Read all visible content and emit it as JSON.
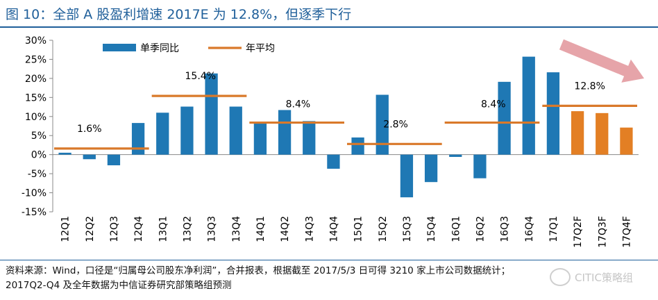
{
  "title": "图 10：全部 A 股盈利增速 2017E 为 12.8%，但逐季下行",
  "note_line1": "资料来源：Wind，口径是“归属母公司股东净利润”，合并报表，根据截至 2017/5/3 日可得 3210 家上市公司数据统计；",
  "note_line2": "2017Q2-Q4 及全年数据为中信证券研究部策略组预测",
  "watermark": "CITIC策略组",
  "colors": {
    "actual": "#1f78b4",
    "forecast": "#e37f24",
    "avg": "#d9792a",
    "arrow": "#e39aa0",
    "title": "#1f5f9a"
  },
  "chart_data": {
    "type": "bar",
    "title": "全部 A 股盈利增速 2017E 为 12.8%，但逐季下行",
    "xlabel": "",
    "ylabel": "",
    "ylim": [
      -15,
      30
    ],
    "yticks": [
      "-15%",
      "-10%",
      "-5%",
      "0%",
      "5%",
      "10%",
      "15%",
      "20%",
      "25%",
      "30%"
    ],
    "yticks_values": [
      -15,
      -10,
      -5,
      0,
      5,
      10,
      15,
      20,
      25,
      30
    ],
    "categories": [
      "12Q1",
      "12Q2",
      "12Q3",
      "12Q4",
      "13Q1",
      "13Q2",
      "13Q3",
      "13Q4",
      "14Q1",
      "14Q2",
      "14Q3",
      "14Q4",
      "15Q1",
      "15Q2",
      "15Q3",
      "15Q4",
      "16Q1",
      "16Q2",
      "16Q3",
      "16Q4",
      "17Q1",
      "17Q2F",
      "17Q3F",
      "17Q4F"
    ],
    "values": [
      0.5,
      -1.2,
      -2.8,
      8.3,
      11.0,
      12.6,
      21.3,
      12.6,
      8.3,
      11.7,
      8.8,
      -3.7,
      4.5,
      15.7,
      -11.2,
      -7.2,
      -0.6,
      -6.2,
      19.1,
      25.7,
      21.6,
      11.4,
      10.9,
      7.1
    ],
    "forecast_from_index": 21,
    "legend": [
      {
        "label": "单季同比",
        "kind": "bar"
      },
      {
        "label": "年平均",
        "kind": "line"
      }
    ],
    "legend_position": "top-left",
    "annual_average": [
      {
        "label": "1.6%",
        "value": 1.6,
        "start": 0,
        "end": 3
      },
      {
        "label": "15.4%",
        "value": 15.4,
        "start": 4,
        "end": 7
      },
      {
        "label": "8.4%",
        "value": 8.4,
        "start": 8,
        "end": 11
      },
      {
        "label": "2.8%",
        "value": 2.8,
        "start": 12,
        "end": 15
      },
      {
        "label": "8.4%",
        "value": 8.4,
        "start": 16,
        "end": 19
      },
      {
        "label": "12.8%",
        "value": 12.8,
        "start": 20,
        "end": 23
      }
    ],
    "annotation": "down-trend arrow over 2017"
  }
}
